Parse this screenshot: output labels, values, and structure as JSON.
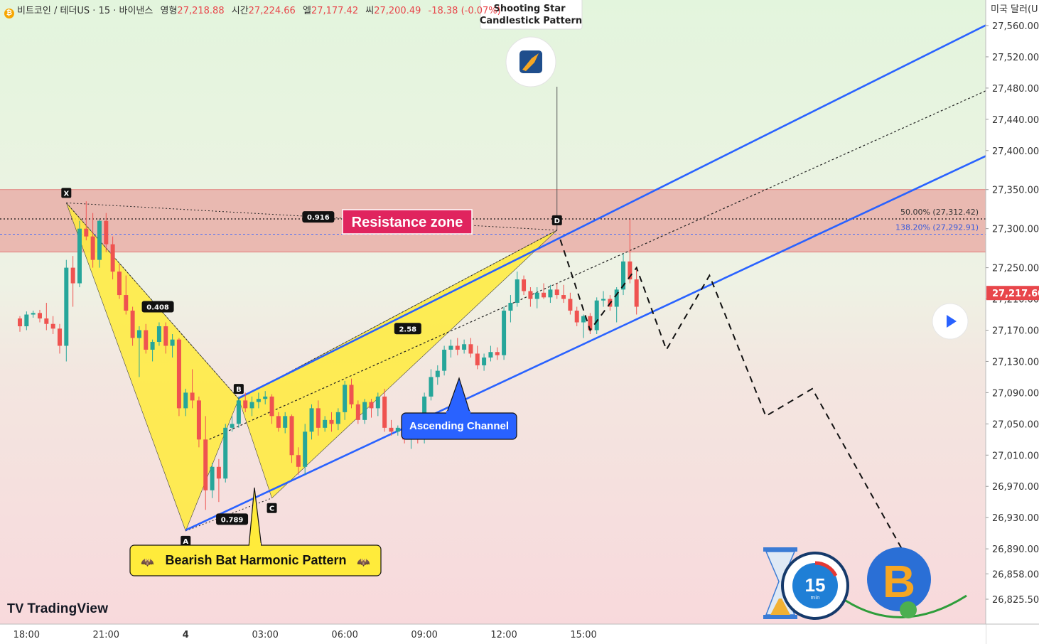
{
  "header": {
    "symbol": "비트코인 / 테더US · 15 · 바이낸스",
    "open_label": "영형",
    "open": "27,218.88",
    "high_label": "시간",
    "high": "27,224.66",
    "low_label": "엘",
    "low": "27,177.42",
    "close_label": "씨",
    "close": "27,200.49",
    "change": "-18.38 (-0.07%)"
  },
  "currency_label": "미국 달러(U",
  "brand": "TradingView",
  "colors": {
    "up": "#26a69a",
    "down": "#ef5350",
    "channel": "#2962ff",
    "harmonic_fill": "#ffeb3b",
    "resistance_zone": "#e8a5a0",
    "callout_red": "#e0245e",
    "callout_blue": "#2962ff"
  },
  "chart_data": {
    "type": "candlestick",
    "title": "비트코인 / 테더US · 15 · 바이낸스",
    "y_axis": {
      "min": 26800,
      "max": 27590,
      "ticks": [
        "27,560.00",
        "27,520.00",
        "27,480.00",
        "27,440.00",
        "27,400.00",
        "27,350.00",
        "27,300.00",
        "27,250.00",
        "27,210.00",
        "27,170.00",
        "27,130.00",
        "27,090.00",
        "27,050.00",
        "27,010.00",
        "26,970.00",
        "26,930.00",
        "26,890.00",
        "26,858.00",
        "26,825.50"
      ],
      "tick_values": [
        27560,
        27520,
        27480,
        27440,
        27400,
        27350,
        27300,
        27250,
        27210,
        27170,
        27130,
        27090,
        27050,
        27010,
        26970,
        26930,
        26890,
        26858,
        26825.5
      ]
    },
    "x_axis": {
      "ticks": [
        "18:00",
        "21:00",
        "4",
        "03:00",
        "06:00",
        "09:00",
        "12:00",
        "15:00"
      ],
      "tick_bars": [
        1,
        13,
        25,
        37,
        49,
        61,
        73,
        85
      ]
    },
    "last_price": {
      "value": 27217.6,
      "label": "27,217.60"
    },
    "candles": [
      [
        27185,
        27188,
        27168,
        27175
      ],
      [
        27175,
        27194,
        27170,
        27190
      ],
      [
        27190,
        27195,
        27186,
        27192
      ],
      [
        27192,
        27196,
        27180,
        27185
      ],
      [
        27185,
        27205,
        27170,
        27178
      ],
      [
        27178,
        27188,
        27165,
        27172
      ],
      [
        27172,
        27178,
        27140,
        27150
      ],
      [
        27150,
        27260,
        27130,
        27250
      ],
      [
        27250,
        27265,
        27200,
        27230
      ],
      [
        27230,
        27310,
        27225,
        27300
      ],
      [
        27300,
        27335,
        27285,
        27290
      ],
      [
        27290,
        27320,
        27250,
        27260
      ],
      [
        27260,
        27312,
        27250,
        27310
      ],
      [
        27310,
        27320,
        27270,
        27280
      ],
      [
        27280,
        27290,
        27235,
        27245
      ],
      [
        27245,
        27255,
        27210,
        27215
      ],
      [
        27215,
        27240,
        27190,
        27195
      ],
      [
        27195,
        27200,
        27150,
        27160
      ],
      [
        27160,
        27175,
        27110,
        27170
      ],
      [
        27170,
        27178,
        27140,
        27145
      ],
      [
        27145,
        27158,
        27130,
        27155
      ],
      [
        27155,
        27180,
        27150,
        27175
      ],
      [
        27175,
        27180,
        27140,
        27150
      ],
      [
        27150,
        27165,
        27135,
        27158
      ],
      [
        27158,
        27160,
        27060,
        27070
      ],
      [
        27070,
        27095,
        27060,
        27090
      ],
      [
        27090,
        27120,
        27070,
        27080
      ],
      [
        27080,
        27085,
        27020,
        27030
      ],
      [
        27030,
        27060,
        26940,
        26965
      ],
      [
        26965,
        27000,
        26955,
        26995
      ],
      [
        26995,
        27005,
        26950,
        26980
      ],
      [
        26980,
        27050,
        26975,
        27045
      ],
      [
        27045,
        27060,
        27040,
        27050
      ],
      [
        27050,
        27085,
        27045,
        27080
      ],
      [
        27080,
        27090,
        27065,
        27070
      ],
      [
        27070,
        27085,
        27060,
        27078
      ],
      [
        27078,
        27090,
        27070,
        27082
      ],
      [
        27082,
        27092,
        27075,
        27085
      ],
      [
        27085,
        27088,
        27050,
        27060
      ],
      [
        27060,
        27065,
        27040,
        27045
      ],
      [
        27045,
        27065,
        27038,
        27060
      ],
      [
        27060,
        27062,
        27000,
        27010
      ],
      [
        27010,
        27020,
        26985,
        26995
      ],
      [
        26995,
        27050,
        26985,
        27040
      ],
      [
        27040,
        27075,
        27030,
        27070
      ],
      [
        27070,
        27080,
        27035,
        27045
      ],
      [
        27045,
        27060,
        27040,
        27055
      ],
      [
        27055,
        27065,
        27040,
        27050
      ],
      [
        27050,
        27070,
        27042,
        27065
      ],
      [
        27065,
        27105,
        27055,
        27100
      ],
      [
        27100,
        27108,
        27070,
        27075
      ],
      [
        27075,
        27080,
        27050,
        27055
      ],
      [
        27055,
        27082,
        27050,
        27078
      ],
      [
        27078,
        27082,
        27058,
        27070
      ],
      [
        27070,
        27090,
        27060,
        27085
      ],
      [
        27085,
        27095,
        27040,
        27045
      ],
      [
        27045,
        27055,
        27035,
        27040
      ],
      [
        27040,
        27048,
        27035,
        27045
      ],
      [
        27045,
        27050,
        27025,
        27030
      ],
      [
        27030,
        27040,
        27018,
        27032
      ],
      [
        27032,
        27038,
        27025,
        27030
      ],
      [
        27030,
        27090,
        27025,
        27085
      ],
      [
        27085,
        27120,
        27080,
        27110
      ],
      [
        27110,
        27125,
        27100,
        27118
      ],
      [
        27118,
        27150,
        27112,
        27145
      ],
      [
        27145,
        27158,
        27135,
        27150
      ],
      [
        27150,
        27160,
        27138,
        27145
      ],
      [
        27145,
        27158,
        27140,
        27152
      ],
      [
        27152,
        27160,
        27135,
        27140
      ],
      [
        27140,
        27150,
        27120,
        27125
      ],
      [
        27125,
        27140,
        27118,
        27135
      ],
      [
        27135,
        27150,
        27130,
        27142
      ],
      [
        27142,
        27148,
        27132,
        27138
      ],
      [
        27138,
        27200,
        27132,
        27195
      ],
      [
        27195,
        27215,
        27180,
        27205
      ],
      [
        27205,
        27245,
        27200,
        27235
      ],
      [
        27235,
        27240,
        27215,
        27220
      ],
      [
        27220,
        27225,
        27200,
        27210
      ],
      [
        27210,
        27225,
        27198,
        27218
      ],
      [
        27218,
        27230,
        27210,
        27212
      ],
      [
        27212,
        27228,
        27205,
        27222
      ],
      [
        27222,
        27230,
        27210,
        27215
      ],
      [
        27215,
        27228,
        27205,
        27210
      ],
      [
        27210,
        27218,
        27190,
        27195
      ],
      [
        27195,
        27200,
        27175,
        27180
      ],
      [
        27180,
        27190,
        27160,
        27188
      ],
      [
        27188,
        27192,
        27165,
        27170
      ],
      [
        27170,
        27212,
        27165,
        27208
      ],
      [
        27208,
        27220,
        27200,
        27210
      ],
      [
        27210,
        27215,
        27195,
        27200
      ],
      [
        27200,
        27225,
        27180,
        27222
      ],
      [
        27222,
        27268,
        27215,
        27258
      ],
      [
        27258,
        27312,
        27230,
        27235
      ],
      [
        27235,
        27250,
        27190,
        27200
      ]
    ],
    "resistance_zone": {
      "top": 27350,
      "bottom": 27270
    },
    "levels": [
      {
        "label": "50.00% (27,312.42)",
        "value": 27312.42
      },
      {
        "label": "138.20% (27,292.91)",
        "value": 27292.91
      }
    ],
    "harmonic_pattern": {
      "name": "Bearish Bat Harmonic Pattern",
      "points": [
        {
          "name": "X",
          "bar": 7,
          "price": 27333
        },
        {
          "name": "A",
          "bar": 25,
          "price": 26913
        },
        {
          "name": "B",
          "bar": 33,
          "price": 27082
        },
        {
          "name": "C",
          "bar": 38,
          "price": 26955
        },
        {
          "name": "D",
          "bar": 81,
          "price": 27298
        }
      ],
      "ratios": [
        {
          "label": "0.408",
          "bar": 20.8,
          "price": 27200
        },
        {
          "label": "0.789",
          "bar": 32,
          "price": 26928
        },
        {
          "label": "2.58",
          "bar": 58.5,
          "price": 27172
        },
        {
          "label": "0.916",
          "bar": 45,
          "price": 27315
        }
      ]
    },
    "channel": {
      "upper": [
        [
          33,
          27083
        ],
        [
          155,
          27600
        ]
      ],
      "mid": [
        [
          28,
          27028
        ],
        [
          155,
          27512
        ]
      ],
      "lower": [
        [
          25,
          26914
        ],
        [
          155,
          27430
        ]
      ]
    },
    "projection_path": [
      [
        81.5,
        27286
      ],
      [
        86,
        27170
      ],
      [
        93,
        27250
      ],
      [
        97.5,
        27145
      ],
      [
        104,
        27240
      ],
      [
        112.5,
        27060
      ],
      [
        119.5,
        27095
      ],
      [
        134,
        26875
      ]
    ],
    "annotations": {
      "resistance": "Resistance zone",
      "channel": "Ascending Channel",
      "harmonic": "Bearish Bat Harmonic Pattern",
      "shooting_star": [
        "Shooting Star",
        "Candlestick Pattern"
      ]
    },
    "badge_15": "15",
    "badge_15_sub": "min"
  }
}
